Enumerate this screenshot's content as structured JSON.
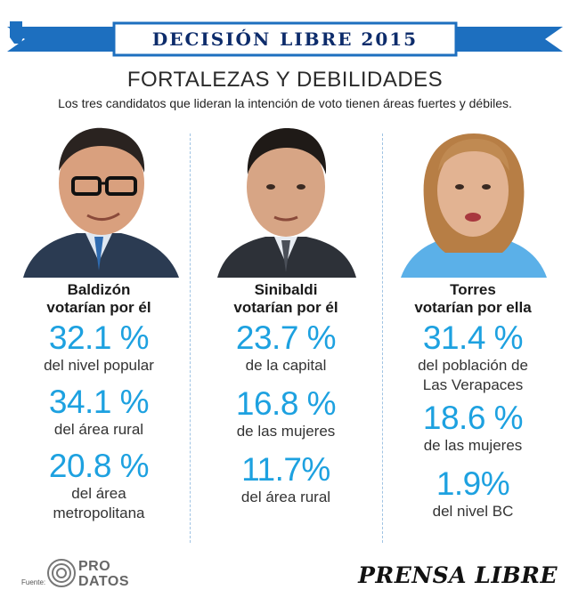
{
  "banner": {
    "part1": "DECISIÓN",
    "part2": "LIBRE 2015"
  },
  "title": "FORTALEZAS Y DEBILIDADES",
  "subtitle": "Los tres candidatos que lideran la intención de voto tienen áreas fuertes y débiles.",
  "colors": {
    "accent": "#1da1e0",
    "banner": "#1d6fbf",
    "banner_text": "#0d2c6b"
  },
  "candidates": [
    {
      "name": "Baldizón",
      "sub": "votarían por él",
      "stats": [
        {
          "value": "32.1 %",
          "desc": [
            "del nivel popular"
          ]
        },
        {
          "value": "34.1 %",
          "desc": [
            "del área rural"
          ]
        },
        {
          "value": "20.8 %",
          "desc": [
            "del área",
            "metropolitana"
          ]
        }
      ]
    },
    {
      "name": "Sinibaldi",
      "sub": "votarían por él",
      "stats": [
        {
          "value": "23.7 %",
          "desc": [
            "de la capital"
          ]
        },
        {
          "value": "16.8 %",
          "desc": [
            "de las mujeres"
          ]
        },
        {
          "value": "11.7%",
          "desc": [
            "del área rural"
          ]
        }
      ]
    },
    {
      "name": "Torres",
      "sub": "votarían por ella",
      "stats": [
        {
          "value": "31.4 %",
          "desc": [
            "del población de",
            "Las Verapaces"
          ]
        },
        {
          "value": "18.6 %",
          "desc": [
            "de las mujeres"
          ]
        },
        {
          "value": "1.9%",
          "desc": [
            "del nivel BC"
          ]
        }
      ]
    }
  ],
  "footer": {
    "source_label": "Fuente:",
    "prodatos_line1": "PRO",
    "prodatos_line2": "DATOS",
    "brand": "PRENSA LIBRE"
  }
}
